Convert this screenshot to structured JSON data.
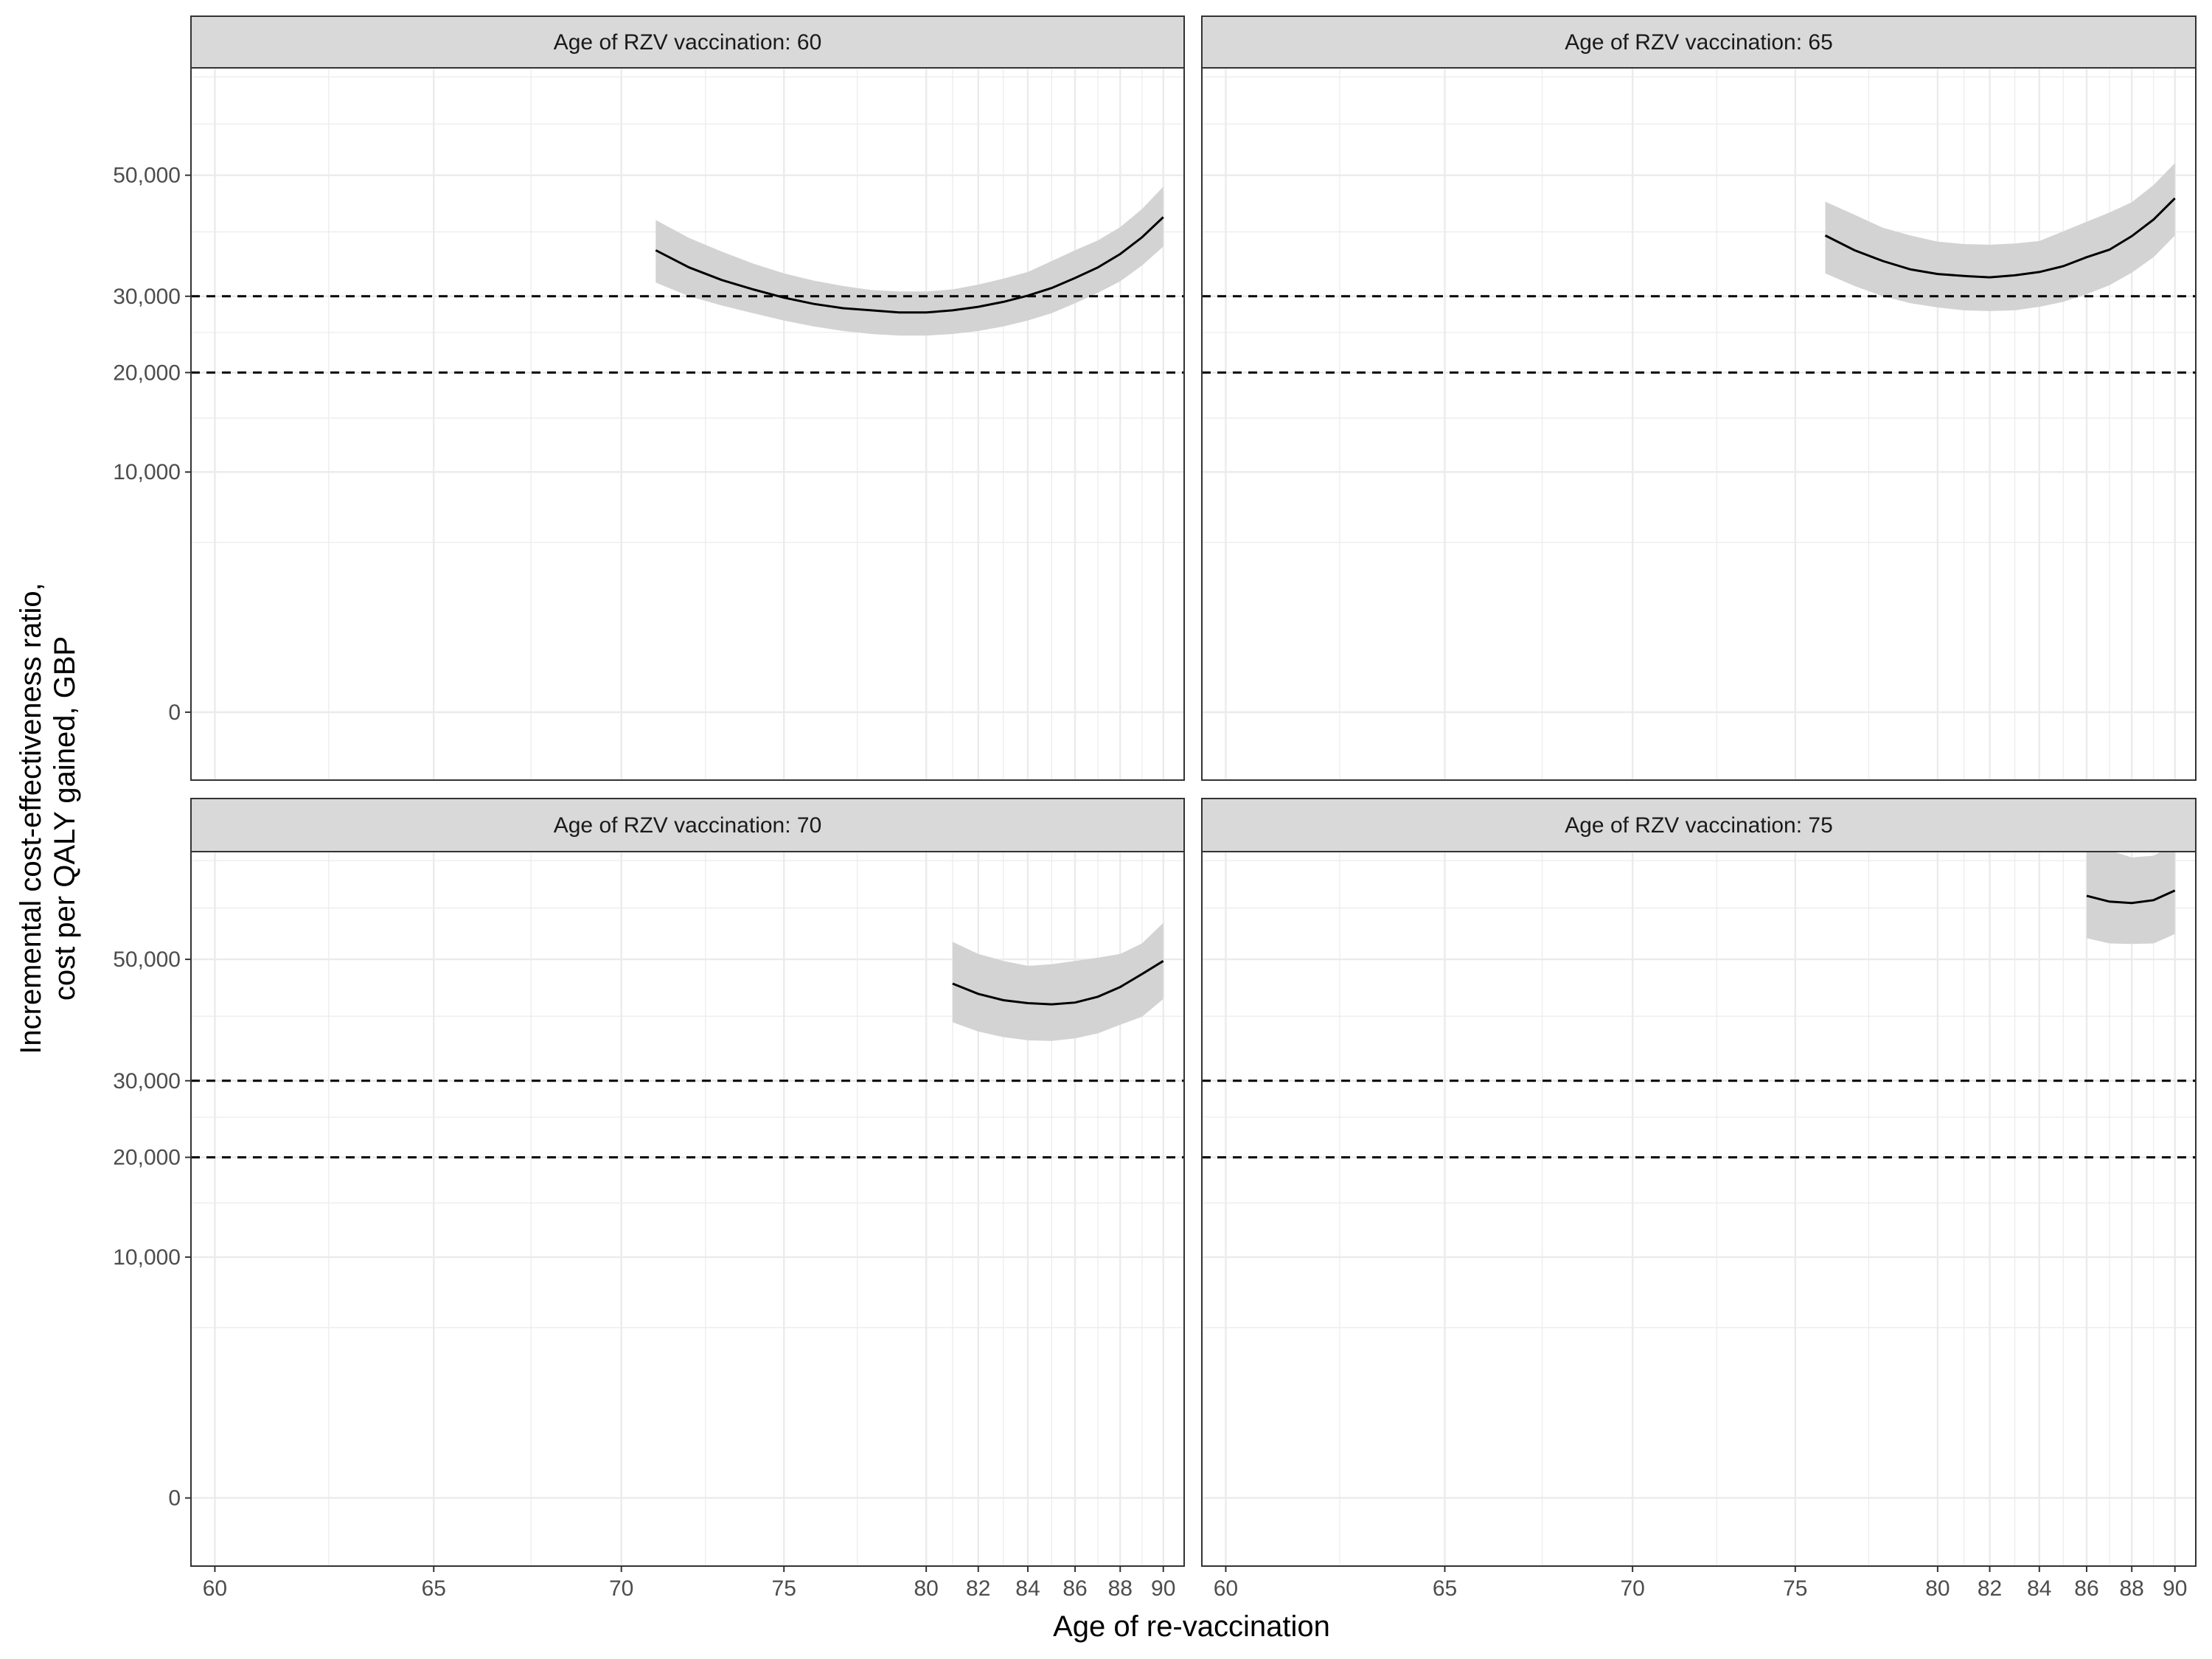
{
  "figure": {
    "xlabel": "Age of re-vaccination",
    "ylabel_line1": "Incremental cost-effectiveness ratio,",
    "ylabel_line2": "cost per QALY gained, GBP"
  },
  "colors": {
    "background": "#ffffff",
    "strip_fill": "#d9d9d9",
    "panel_border": "#333333",
    "grid": "#ebebeb",
    "ribbon": "#d3d3d3",
    "line": "#000000",
    "threshold": "#000000"
  },
  "chart_data": [
    {
      "type": "line",
      "title": "Age of RZV vaccination: 60",
      "x_scale": "reciprocal",
      "y_scale": "sqrt",
      "xlim": [
        59.5,
        91
      ],
      "ylim": [
        -800,
        72000
      ],
      "x_ticks": [
        60,
        65,
        70,
        75,
        80,
        82,
        84,
        86,
        88,
        90
      ],
      "y_ticks": [
        0,
        10000,
        20000,
        30000,
        50000
      ],
      "y_tick_labels": [
        "0",
        "10,000",
        "20,000",
        "30,000",
        "50,000"
      ],
      "grid": true,
      "thresholds": [
        20000,
        30000
      ],
      "x": [
        71,
        72,
        73,
        74,
        75,
        76,
        77,
        78,
        79,
        80,
        81,
        82,
        83,
        84,
        85,
        86,
        87,
        88,
        89,
        90
      ],
      "series": [
        {
          "values": [
            37000,
            34300,
            32400,
            31000,
            29800,
            28900,
            28300,
            28000,
            27700,
            27700,
            28000,
            28500,
            29200,
            30100,
            31200,
            32700,
            34300,
            36400,
            39100,
            42500
          ]
        }
      ],
      "ribbon_lower": [
        32000,
        30000,
        28700,
        27600,
        26600,
        25800,
        25200,
        24800,
        24600,
        24600,
        24800,
        25200,
        25800,
        26600,
        27600,
        29000,
        30500,
        32200,
        34600,
        37600
      ],
      "ribbon_upper": [
        42000,
        39000,
        36800,
        34900,
        33400,
        32300,
        31500,
        30900,
        30700,
        30700,
        31000,
        31700,
        32600,
        33600,
        35300,
        37000,
        38600,
        40800,
        43900,
        47900
      ]
    },
    {
      "type": "line",
      "title": "Age of RZV vaccination: 65",
      "x_scale": "reciprocal",
      "y_scale": "sqrt",
      "xlim": [
        59.5,
        91
      ],
      "ylim": [
        -800,
        72000
      ],
      "x_ticks": [
        60,
        65,
        70,
        75,
        80,
        82,
        84,
        86,
        88,
        90
      ],
      "y_ticks": [
        0,
        10000,
        20000,
        30000,
        50000
      ],
      "y_tick_labels": [
        "0",
        "10,000",
        "20,000",
        "30,000",
        "50,000"
      ],
      "grid": true,
      "thresholds": [
        20000,
        30000
      ],
      "x": [
        76,
        77,
        78,
        79,
        80,
        81,
        82,
        83,
        84,
        85,
        86,
        87,
        88,
        89,
        90
      ],
      "series": [
        {
          "values": [
            39400,
            37000,
            35300,
            34000,
            33300,
            33000,
            32800,
            33100,
            33600,
            34500,
            35900,
            37100,
            39300,
            42100,
            45800
          ]
        }
      ],
      "ribbon_lower": [
        33400,
        31500,
        30000,
        29000,
        28400,
        28000,
        27900,
        28000,
        28500,
        29200,
        30300,
        31600,
        33500,
        35900,
        39400
      ],
      "ribbon_upper": [
        45200,
        42900,
        40700,
        39400,
        38400,
        38000,
        37900,
        38100,
        38500,
        40100,
        41700,
        43300,
        45100,
        48200,
        52300
      ]
    },
    {
      "type": "line",
      "title": "Age of RZV vaccination: 70",
      "x_scale": "reciprocal",
      "y_scale": "sqrt",
      "xlim": [
        59.5,
        91
      ],
      "ylim": [
        -800,
        72000
      ],
      "x_ticks": [
        60,
        65,
        70,
        75,
        80,
        82,
        84,
        86,
        88,
        90
      ],
      "y_ticks": [
        0,
        10000,
        20000,
        30000,
        50000
      ],
      "y_tick_labels": [
        "0",
        "10,000",
        "20,000",
        "30,000",
        "50,000"
      ],
      "grid": true,
      "thresholds": [
        20000,
        30000
      ],
      "x": [
        81,
        82,
        83,
        84,
        85,
        86,
        87,
        88,
        89,
        90
      ],
      "series": [
        {
          "values": [
            45600,
            43800,
            42700,
            42200,
            42000,
            42300,
            43300,
            45000,
            47300,
            49700
          ]
        }
      ],
      "ribbon_lower": [
        39000,
        37500,
        36600,
        36100,
        36000,
        36400,
        37200,
        38600,
        39900,
        42900
      ],
      "ribbon_upper": [
        53300,
        51000,
        49700,
        48800,
        49100,
        49700,
        50300,
        51000,
        53000,
        57000
      ]
    },
    {
      "type": "line",
      "title": "Age of RZV vaccination: 75",
      "x_scale": "reciprocal",
      "y_scale": "sqrt",
      "xlim": [
        59.5,
        91
      ],
      "ylim": [
        -800,
        72000
      ],
      "x_ticks": [
        60,
        65,
        70,
        75,
        80,
        82,
        84,
        86,
        88,
        90
      ],
      "y_ticks": [
        0,
        10000,
        20000,
        30000,
        50000
      ],
      "y_tick_labels": [
        "0",
        "10,000",
        "20,000",
        "30,000",
        "50,000"
      ],
      "grid": true,
      "thresholds": [
        20000,
        30000
      ],
      "x": [
        86,
        87,
        88,
        89,
        90
      ],
      "series": [
        {
          "values": [
            62500,
            61300,
            61000,
            61600,
            63600
          ]
        }
      ],
      "ribbon_lower": [
        54000,
        53000,
        52900,
        53000,
        54800
      ],
      "ribbon_upper": [
        74800,
        72300,
        70700,
        71100,
        73800
      ]
    }
  ]
}
